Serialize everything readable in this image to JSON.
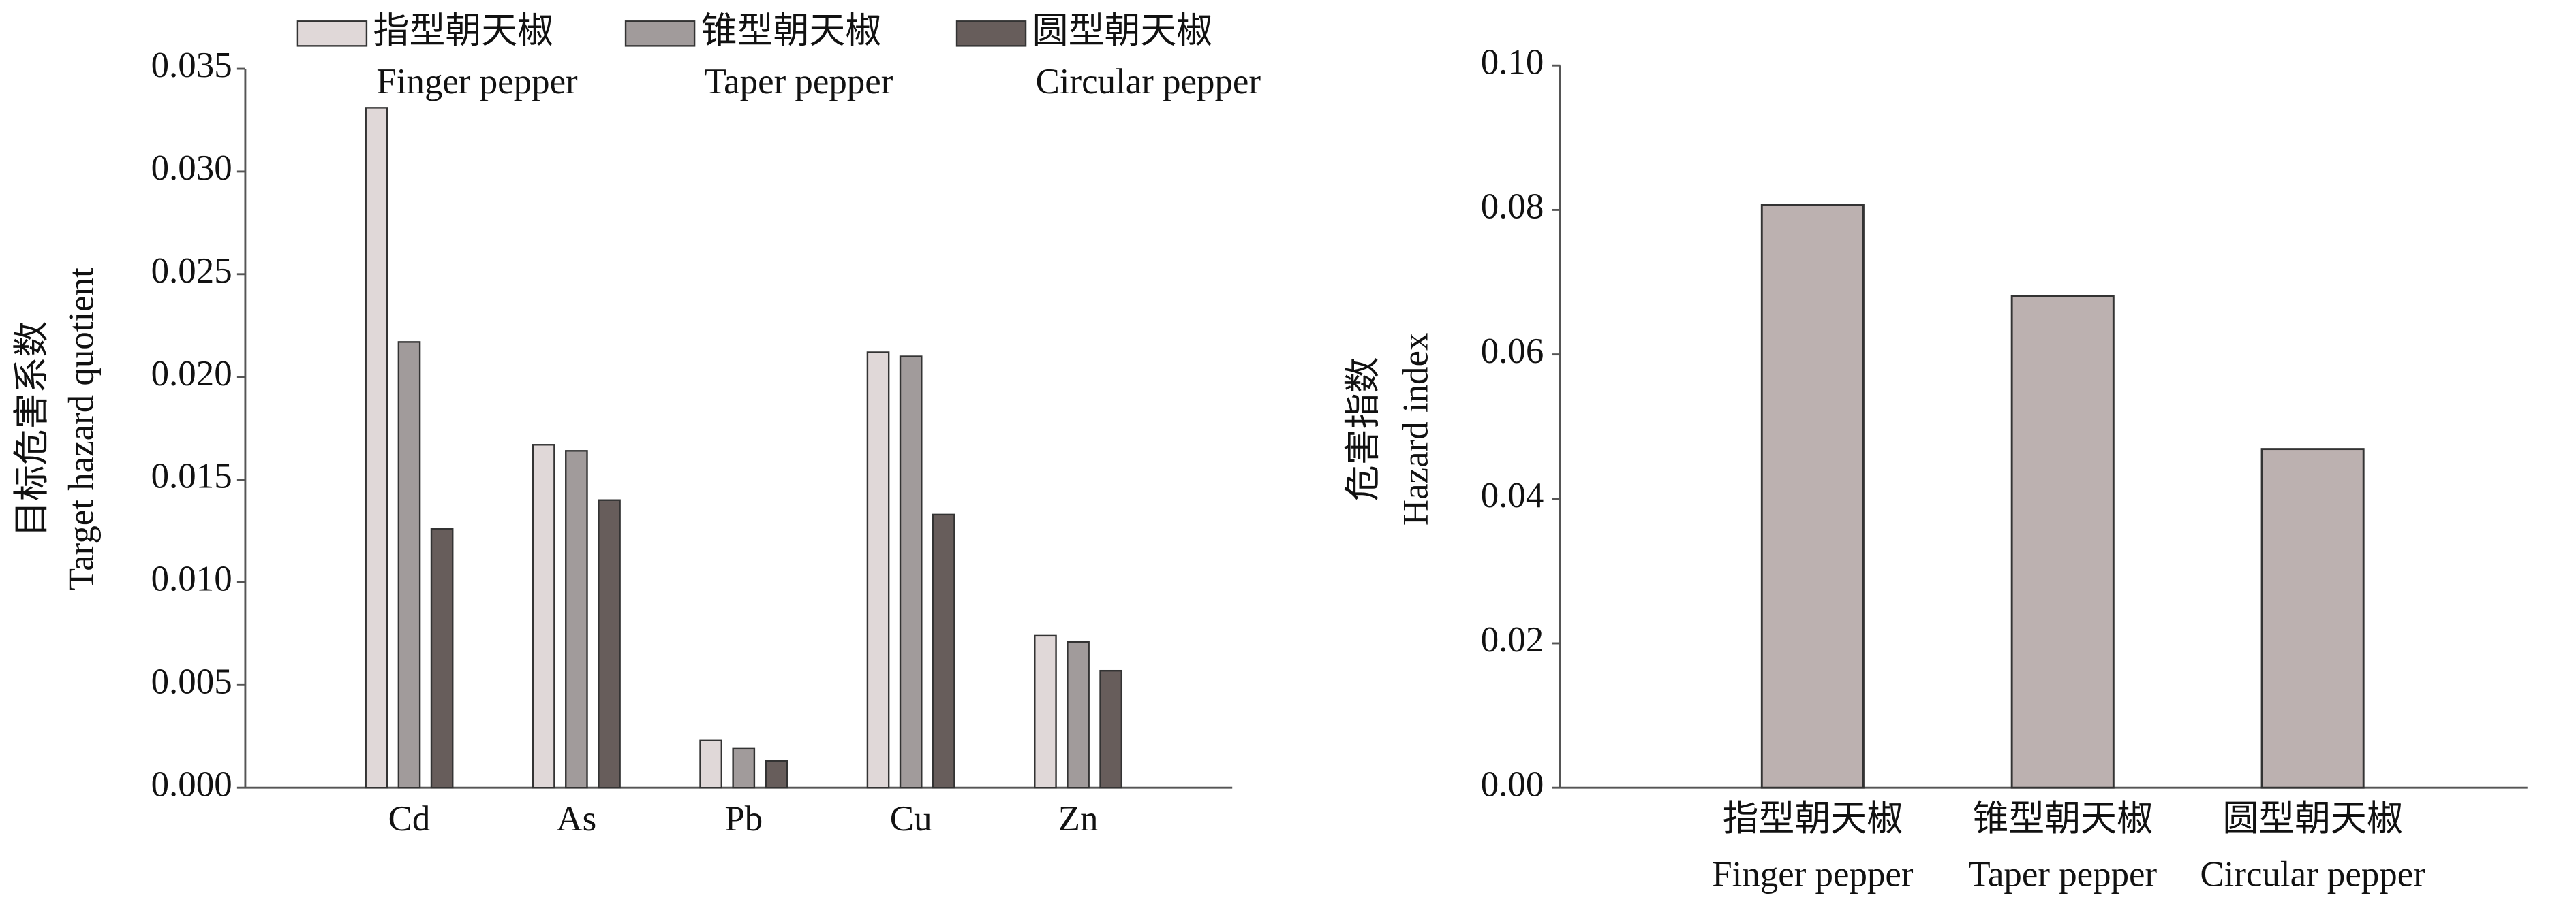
{
  "chart_data": [
    {
      "type": "grouped-bar",
      "ylabel": [
        "目标危害系数",
        "Target hazard quotient"
      ],
      "categories": [
        "Cd",
        "As",
        "Pb",
        "Cu",
        "Zn"
      ],
      "series": [
        {
          "name": "指型朝天椒",
          "name_en": "Finger pepper",
          "color": "#e0d8d8",
          "values": [
            0.0331,
            0.0167,
            0.0023,
            0.0212,
            0.0074
          ]
        },
        {
          "name": "锥型朝天椒",
          "name_en": "Taper pepper",
          "color": "#a19b9b",
          "values": [
            0.0217,
            0.0164,
            0.0019,
            0.021,
            0.0071
          ]
        },
        {
          "name": "圆型朝天椒",
          "name_en": "Circular pepper",
          "color": "#675d5b",
          "values": [
            0.0126,
            0.014,
            0.0013,
            0.0133,
            0.0057
          ]
        }
      ],
      "ylim": [
        0,
        0.035
      ],
      "yticks": [
        {
          "value": 0,
          "label": "0.000"
        },
        {
          "value": 0.005,
          "label": "0.005"
        },
        {
          "value": 0.01,
          "label": "0.010"
        },
        {
          "value": 0.015,
          "label": "0.015"
        },
        {
          "value": 0.02,
          "label": "0.020"
        },
        {
          "value": 0.025,
          "label": "0.025"
        },
        {
          "value": 0.03,
          "label": "0.030"
        },
        {
          "value": 0.035,
          "label": "0.035"
        }
      ]
    },
    {
      "type": "bar",
      "ylabel": [
        "危害指数",
        "Hazard index"
      ],
      "categories": [
        "指型朝天椒",
        "锥型朝天椒",
        "圆型朝天椒"
      ],
      "categories_en": [
        "Finger pepper",
        "Taper pepper",
        "Circular pepper"
      ],
      "values": [
        0.0807,
        0.0681,
        0.0469
      ],
      "color": "#bcb1b0",
      "ylim": [
        0,
        0.1
      ],
      "yticks": [
        {
          "value": 0,
          "label": "0.00"
        },
        {
          "value": 0.02,
          "label": "0.02"
        },
        {
          "value": 0.04,
          "label": "0.04"
        },
        {
          "value": 0.06,
          "label": "0.06"
        },
        {
          "value": 0.08,
          "label": "0.08"
        },
        {
          "value": 0.1,
          "label": "0.10"
        }
      ]
    }
  ]
}
